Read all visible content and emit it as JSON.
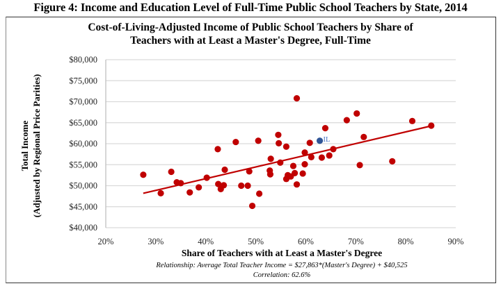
{
  "figure_title": "Figure 4: Income and Education Level of Full-Time Public School Teachers by State, 2014",
  "chart_title_line1": "Cost-of-Living-Adjusted Income of Public School Teachers by Share of",
  "chart_title_line2": "Teachers with at Least a Master's Degree, Full-Time",
  "y_title_line1": "Total Income",
  "y_title_line2": "(Adjusted by Regional Price Parities)",
  "x_title": "Share of Teachers with at Least a Master's Degree",
  "relationship": "Relationship: Average Total Teacher Income = $27,863*(Master's Degree) + $40,525",
  "correlation": "Correlation: 62.6%",
  "colors": {
    "points": "#c00000",
    "trendline": "#c00000",
    "highlight": "#2f5597",
    "grid": "#d9d9d9"
  },
  "chart_data": {
    "type": "scatter",
    "title": "Cost-of-Living-Adjusted Income of Public School Teachers by Share of Teachers with at Least a Master's Degree, Full-Time",
    "xlabel": "Share of Teachers with at Least a Master's Degree",
    "ylabel": "Total Income (Adjusted by Regional Price Parities)",
    "xlim": [
      0.2,
      0.9
    ],
    "ylim": [
      40000,
      80000
    ],
    "x_ticks": [
      "20%",
      "30%",
      "40%",
      "50%",
      "60%",
      "70%",
      "80%",
      "90%"
    ],
    "y_ticks": [
      "$40,000",
      "$45,000",
      "$50,000",
      "$55,000",
      "$60,000",
      "$65,000",
      "$70,000",
      "$75,000",
      "$80,000"
    ],
    "grid": "horizontal",
    "legend": "none",
    "trendline": {
      "slope": 27863,
      "intercept": 40525,
      "x_start": 0.275,
      "x_end": 0.851,
      "correlation": 0.626
    },
    "highlight": {
      "label": "IL",
      "x": 0.628,
      "y": 60700
    },
    "points": [
      [
        0.275,
        52600
      ],
      [
        0.31,
        48200
      ],
      [
        0.331,
        53300
      ],
      [
        0.342,
        50800
      ],
      [
        0.35,
        50600
      ],
      [
        0.368,
        48400
      ],
      [
        0.386,
        49600
      ],
      [
        0.402,
        51900
      ],
      [
        0.424,
        58700
      ],
      [
        0.425,
        50400
      ],
      [
        0.43,
        49200
      ],
      [
        0.436,
        50100
      ],
      [
        0.438,
        53800
      ],
      [
        0.46,
        60400
      ],
      [
        0.471,
        50000
      ],
      [
        0.484,
        50000
      ],
      [
        0.487,
        53400
      ],
      [
        0.493,
        45200
      ],
      [
        0.505,
        60700
      ],
      [
        0.507,
        48100
      ],
      [
        0.528,
        53600
      ],
      [
        0.529,
        52700
      ],
      [
        0.53,
        56400
      ],
      [
        0.545,
        62100
      ],
      [
        0.546,
        60100
      ],
      [
        0.549,
        55500
      ],
      [
        0.561,
        59300
      ],
      [
        0.561,
        51600
      ],
      [
        0.564,
        52500
      ],
      [
        0.57,
        52200
      ],
      [
        0.575,
        54700
      ],
      [
        0.578,
        53000
      ],
      [
        0.582,
        50300
      ],
      [
        0.582,
        70800
      ],
      [
        0.594,
        52900
      ],
      [
        0.598,
        55100
      ],
      [
        0.598,
        57900
      ],
      [
        0.608,
        60200
      ],
      [
        0.611,
        56800
      ],
      [
        0.632,
        56700
      ],
      [
        0.639,
        63700
      ],
      [
        0.647,
        57200
      ],
      [
        0.655,
        58700
      ],
      [
        0.682,
        65600
      ],
      [
        0.702,
        67200
      ],
      [
        0.708,
        54900
      ],
      [
        0.716,
        61600
      ],
      [
        0.773,
        55800
      ],
      [
        0.813,
        65400
      ],
      [
        0.851,
        64300
      ]
    ]
  }
}
